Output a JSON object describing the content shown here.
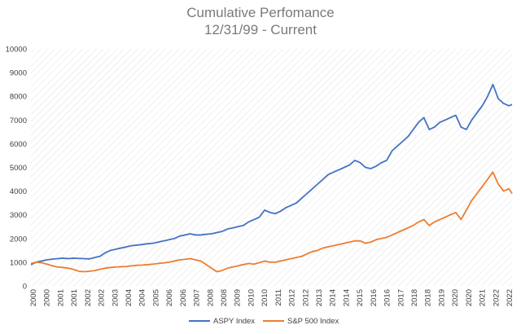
{
  "chart_data": {
    "type": "line",
    "title": "Cumulative Perfomance",
    "subtitle": "12/31/99 - Current",
    "xlabel": "",
    "ylabel": "",
    "ylim": [
      0,
      10000
    ],
    "yticks": [
      0,
      1000,
      2000,
      3000,
      4000,
      5000,
      6000,
      7000,
      8000,
      9000,
      10000
    ],
    "xlim": [
      2000.0,
      2022.65
    ],
    "xticks": [
      "2000",
      "2000",
      "2001",
      "2001",
      "2002",
      "2002",
      "2003",
      "2004",
      "2004",
      "2005",
      "2006",
      "2006",
      "2007",
      "2008",
      "2008",
      "2009",
      "2010",
      "2010",
      "2011",
      "2012",
      "2012",
      "2013",
      "2014",
      "2014",
      "2015",
      "2016",
      "2016",
      "2017",
      "2018",
      "2018",
      "2019",
      "2020",
      "2020",
      "2021",
      "2022",
      "2022"
    ],
    "grid": "diagonal hatch background",
    "legend": "bottom",
    "series": [
      {
        "name": "ASPY Index",
        "color": "#4472c4",
        "x": [
          2000.0,
          2000.25,
          2000.5,
          2000.75,
          2001.0,
          2001.25,
          2001.5,
          2001.75,
          2002.0,
          2002.25,
          2002.5,
          2002.75,
          2003.0,
          2003.25,
          2003.5,
          2003.75,
          2004.0,
          2004.25,
          2004.5,
          2004.75,
          2005.0,
          2005.25,
          2005.5,
          2005.75,
          2006.0,
          2006.25,
          2006.5,
          2006.75,
          2007.0,
          2007.25,
          2007.5,
          2007.75,
          2008.0,
          2008.25,
          2008.5,
          2008.75,
          2009.0,
          2009.25,
          2009.5,
          2009.75,
          2010.0,
          2010.25,
          2010.5,
          2010.75,
          2011.0,
          2011.25,
          2011.5,
          2011.75,
          2012.0,
          2012.25,
          2012.5,
          2012.75,
          2013.0,
          2013.25,
          2013.5,
          2013.75,
          2014.0,
          2014.25,
          2014.5,
          2014.75,
          2015.0,
          2015.25,
          2015.5,
          2015.75,
          2016.0,
          2016.25,
          2016.5,
          2016.75,
          2017.0,
          2017.25,
          2017.5,
          2017.75,
          2018.0,
          2018.25,
          2018.5,
          2018.75,
          2019.0,
          2019.25,
          2019.5,
          2019.75,
          2020.0,
          2020.25,
          2020.5,
          2020.75,
          2021.0,
          2021.25,
          2021.5,
          2021.75,
          2022.0,
          2022.25,
          2022.5,
          2022.65
        ],
        "values": [
          900,
          1000,
          1050,
          1100,
          1130,
          1150,
          1170,
          1150,
          1170,
          1160,
          1150,
          1140,
          1200,
          1250,
          1400,
          1500,
          1550,
          1600,
          1650,
          1700,
          1720,
          1750,
          1780,
          1800,
          1850,
          1900,
          1950,
          2000,
          2100,
          2150,
          2200,
          2150,
          2150,
          2180,
          2200,
          2250,
          2300,
          2400,
          2450,
          2500,
          2550,
          2700,
          2800,
          2900,
          3200,
          3100,
          3050,
          3150,
          3300,
          3400,
          3500,
          3700,
          3900,
          4100,
          4300,
          4500,
          4700,
          4800,
          4900,
          5000,
          5100,
          5300,
          5200,
          5000,
          4950,
          5050,
          5200,
          5300,
          5700,
          5900,
          6100,
          6300,
          6600,
          6900,
          7100,
          6600,
          6700,
          6900,
          7000,
          7100,
          7200,
          6700,
          6600,
          7000,
          7300,
          7600,
          8000,
          8500,
          7900,
          7700,
          7600,
          7650
        ]
      },
      {
        "name": "S&P 500 Index",
        "color": "#ed7d31",
        "x": [
          2000.0,
          2000.25,
          2000.5,
          2000.75,
          2001.0,
          2001.25,
          2001.5,
          2001.75,
          2002.0,
          2002.25,
          2002.5,
          2002.75,
          2003.0,
          2003.25,
          2003.5,
          2003.75,
          2004.0,
          2004.25,
          2004.5,
          2004.75,
          2005.0,
          2005.25,
          2005.5,
          2005.75,
          2006.0,
          2006.25,
          2006.5,
          2006.75,
          2007.0,
          2007.25,
          2007.5,
          2007.75,
          2008.0,
          2008.25,
          2008.5,
          2008.75,
          2009.0,
          2009.25,
          2009.5,
          2009.75,
          2010.0,
          2010.25,
          2010.5,
          2010.75,
          2011.0,
          2011.25,
          2011.5,
          2011.75,
          2012.0,
          2012.25,
          2012.5,
          2012.75,
          2013.0,
          2013.25,
          2013.5,
          2013.75,
          2014.0,
          2014.25,
          2014.5,
          2014.75,
          2015.0,
          2015.25,
          2015.5,
          2015.75,
          2016.0,
          2016.25,
          2016.5,
          2016.75,
          2017.0,
          2017.25,
          2017.5,
          2017.75,
          2018.0,
          2018.25,
          2018.5,
          2018.75,
          2019.0,
          2019.25,
          2019.5,
          2019.75,
          2020.0,
          2020.25,
          2020.5,
          2020.75,
          2021.0,
          2021.25,
          2021.5,
          2021.75,
          2022.0,
          2022.25,
          2022.5,
          2022.65
        ],
        "values": [
          950,
          1000,
          980,
          920,
          850,
          800,
          780,
          750,
          700,
          620,
          600,
          620,
          650,
          700,
          750,
          780,
          800,
          810,
          820,
          850,
          870,
          880,
          900,
          920,
          950,
          970,
          1000,
          1050,
          1100,
          1120,
          1150,
          1100,
          1050,
          900,
          750,
          600,
          650,
          750,
          800,
          850,
          900,
          950,
          920,
          980,
          1050,
          1000,
          1000,
          1050,
          1100,
          1150,
          1200,
          1250,
          1350,
          1450,
          1500,
          1600,
          1650,
          1700,
          1750,
          1800,
          1850,
          1900,
          1900,
          1800,
          1850,
          1950,
          2000,
          2050,
          2150,
          2250,
          2350,
          2450,
          2550,
          2700,
          2800,
          2550,
          2700,
          2800,
          2900,
          3000,
          3100,
          2800,
          3200,
          3600,
          3900,
          4200,
          4500,
          4800,
          4300,
          4000,
          4100,
          3900
        ]
      }
    ]
  }
}
